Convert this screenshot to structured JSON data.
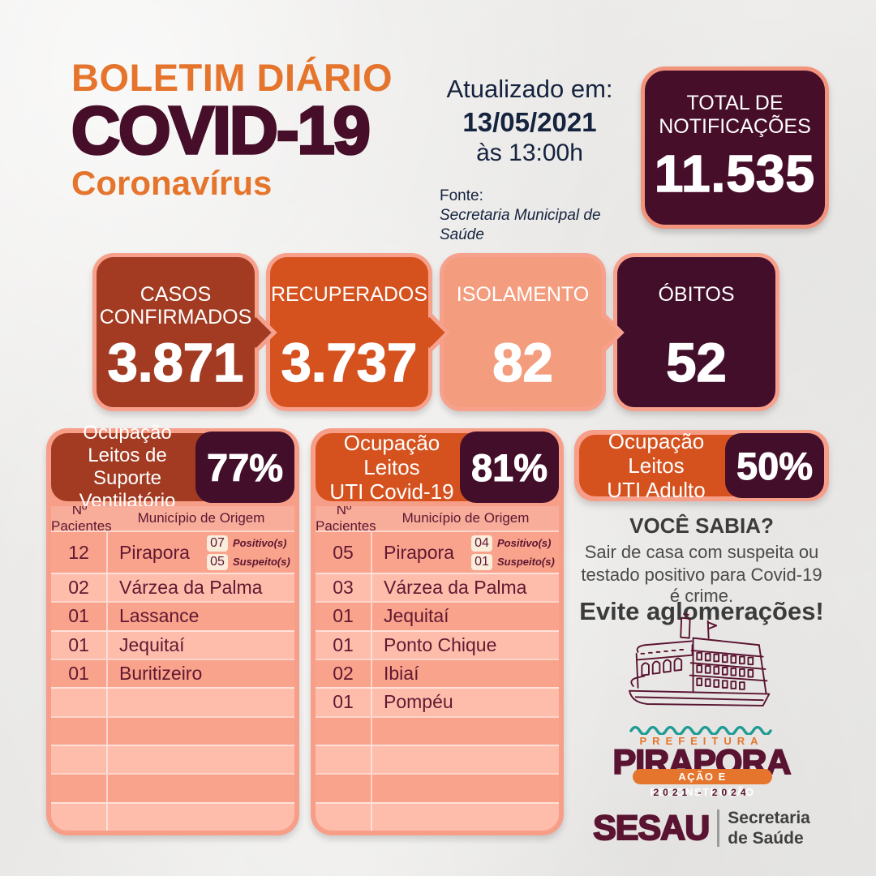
{
  "header": {
    "title_line1": "BOLETIM DIÁRIO",
    "title_line2": "COVID-19",
    "title_line3": "Coronavírus",
    "updated_label": "Atualizado em:",
    "updated_date": "13/05/2021",
    "updated_time": "às 13:00h",
    "source_label": "Fonte:",
    "source_value": "Secretaria Municipal de Saúde",
    "total_box": {
      "label": "TOTAL DE\nNOTIFICAÇÕES",
      "value": "11.535"
    }
  },
  "stats": [
    {
      "label": "CASOS\nCONFIRMADOS",
      "value": "3.871",
      "color": "#A23B22"
    },
    {
      "label": "RECUPERADOS",
      "value": "3.737",
      "color": "#D5521F"
    },
    {
      "label": "ISOLAMENTO",
      "value": "82",
      "color": "#F49D7E"
    },
    {
      "label": "ÓBITOS",
      "value": "52",
      "color": "#430E2A"
    }
  ],
  "tables": [
    {
      "title": "Ocupação\nLeitos de Suporte\nVentilatório",
      "percent": "77%",
      "header_color": "#A23B22",
      "columns": {
        "col1": "Nº Pacientes",
        "col2": "Município de Origem"
      },
      "rows": [
        {
          "count": "12",
          "municipality": "Pirapora",
          "badges": [
            {
              "value": "07",
              "label": "Positivo(s)"
            },
            {
              "value": "05",
              "label": "Suspeito(s)"
            }
          ]
        },
        {
          "count": "02",
          "municipality": "Várzea da Palma"
        },
        {
          "count": "01",
          "municipality": "Lassance"
        },
        {
          "count": "01",
          "municipality": "Jequitaí"
        },
        {
          "count": "01",
          "municipality": "Buritizeiro"
        },
        {
          "count": "",
          "municipality": ""
        },
        {
          "count": "",
          "municipality": ""
        },
        {
          "count": "",
          "municipality": ""
        },
        {
          "count": "",
          "municipality": ""
        },
        {
          "count": "",
          "municipality": ""
        }
      ]
    },
    {
      "title": "Ocupação Leitos\nUTI Covid-19",
      "percent": "81%",
      "header_color": "#D5521F",
      "columns": {
        "col1": "Nº Pacientes",
        "col2": "Município de Origem"
      },
      "rows": [
        {
          "count": "05",
          "municipality": "Pirapora",
          "badges": [
            {
              "value": "04",
              "label": "Positivo(s)"
            },
            {
              "value": "01",
              "label": "Suspeito(s)"
            }
          ]
        },
        {
          "count": "03",
          "municipality": "Várzea da Palma"
        },
        {
          "count": "01",
          "municipality": "Jequitaí"
        },
        {
          "count": "01",
          "municipality": "Ponto Chique"
        },
        {
          "count": "02",
          "municipality": "Ibiaí"
        },
        {
          "count": "01",
          "municipality": "Pompéu"
        },
        {
          "count": "",
          "municipality": ""
        },
        {
          "count": "",
          "municipality": ""
        },
        {
          "count": "",
          "municipality": ""
        },
        {
          "count": "",
          "municipality": ""
        }
      ]
    }
  ],
  "right_column": {
    "occupancy": {
      "title": "Ocupação Leitos\nUTI Adulto",
      "percent": "50%"
    },
    "did_you_know_title": "VOCÊ SABIA?",
    "did_you_know_line1": "Sair de casa com suspeita ou",
    "did_you_know_line2": "testado positivo para Covid-19 é crime.",
    "warning": "Evite aglomerações!",
    "icons": {
      "boat": "steamboat-line-art",
      "wave": "teal-wavy-line"
    },
    "logo": {
      "prefeitura": "PREFEITURA",
      "city": "PIRAPORA",
      "slogan": "AÇÃO E RECONSTRUÇÃO",
      "term": "2021 - 2024",
      "sesau": "SESAU",
      "secretaria": "Secretaria\nde Saúde"
    }
  },
  "colors": {
    "background": "#ECEBE9",
    "orange_title": "#E5752C",
    "dark_maroon": "#470E29",
    "navy_text": "#15233E",
    "brown_red": "#A23B22",
    "orange_red": "#D5521F",
    "salmon": "#F49D7E",
    "salmon_border": "#F7A18C",
    "row_dark": "#F9A28C",
    "row_light": "#FEBCAB",
    "table_text": "#611831",
    "teal_wave": "#1E9C94",
    "gray_text": "#3B3B3B"
  }
}
